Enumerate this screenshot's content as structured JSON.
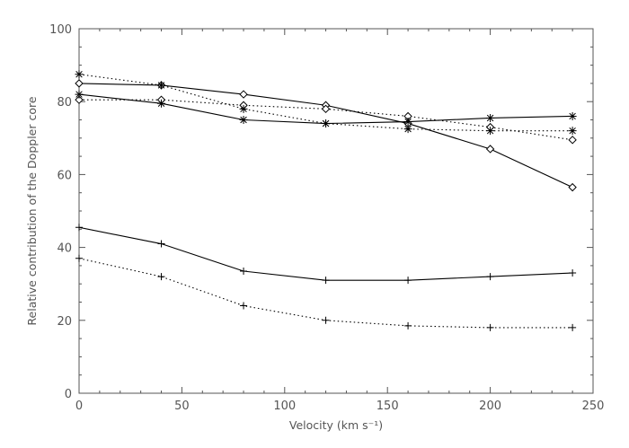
{
  "chart_data": {
    "type": "line",
    "title": "",
    "xlabel": "Velocity (km s⁻¹)",
    "ylabel": "Relative contribution of the Doppler core",
    "xlim": [
      0,
      250
    ],
    "ylim": [
      0,
      100
    ],
    "xticks": [
      0,
      50,
      100,
      150,
      200,
      250
    ],
    "yticks": [
      0,
      20,
      40,
      60,
      80,
      100
    ],
    "grid": false,
    "colors": {
      "line": "#000000",
      "axis": "#555555"
    },
    "x": [
      0,
      40,
      80,
      120,
      160,
      200,
      240
    ],
    "series": [
      {
        "name": "diamond-solid",
        "marker": "diamond",
        "style": "solid",
        "values": [
          85,
          84.5,
          82,
          79,
          74,
          67,
          56.5
        ]
      },
      {
        "name": "diamond-dotted",
        "marker": "diamond",
        "style": "dotted",
        "values": [
          80.5,
          80.5,
          79,
          78,
          76,
          73,
          69.5
        ]
      },
      {
        "name": "asterisk-solid",
        "marker": "asterisk",
        "style": "solid",
        "values": [
          82,
          79.5,
          75,
          74,
          74.5,
          75.5,
          76
        ]
      },
      {
        "name": "asterisk-dotted",
        "marker": "asterisk",
        "style": "dotted",
        "values": [
          87.5,
          84.5,
          78,
          74,
          72.5,
          72,
          72
        ]
      },
      {
        "name": "plus-solid",
        "marker": "plus",
        "style": "solid",
        "values": [
          45.5,
          41,
          33.5,
          31,
          31,
          32,
          33
        ]
      },
      {
        "name": "plus-dotted",
        "marker": "plus",
        "style": "dotted",
        "values": [
          37,
          32,
          24,
          20,
          18.5,
          18,
          18
        ]
      }
    ]
  }
}
